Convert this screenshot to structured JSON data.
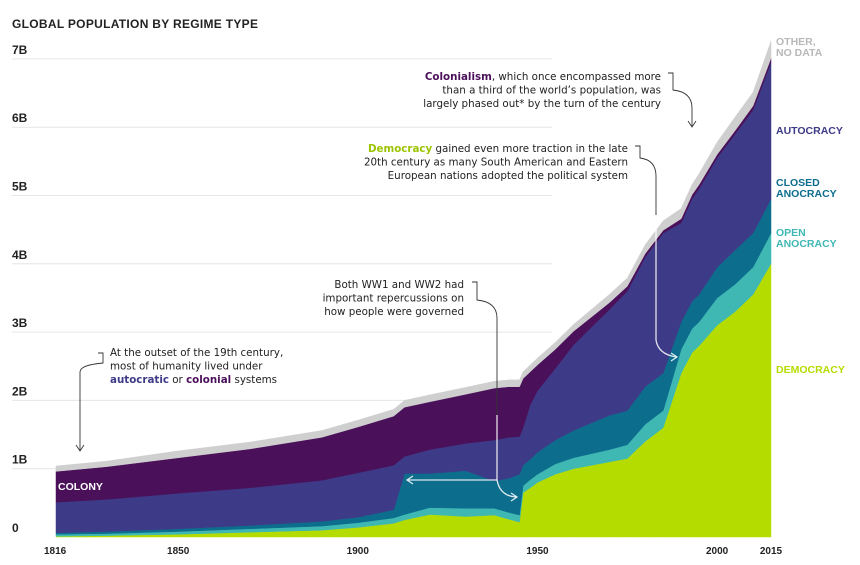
{
  "chart_data": {
    "type": "area",
    "stacked": true,
    "title": "GLOBAL POPULATION BY REGIME TYPE",
    "x_ticks": [
      "1816",
      "1850",
      "1900",
      "1950",
      "2000",
      "2015"
    ],
    "y_ticks": [
      "0",
      "1B",
      "2B",
      "3B",
      "4B",
      "5B",
      "6B",
      "7B"
    ],
    "ylim": [
      0,
      7.4
    ],
    "xlim": [
      1816,
      2015
    ],
    "x": [
      1816,
      1830,
      1850,
      1870,
      1890,
      1900,
      1910,
      1913,
      1920,
      1930,
      1938,
      1942,
      1945,
      1946,
      1948,
      1950,
      1955,
      1960,
      1970,
      1975,
      1980,
      1985,
      1990,
      1993,
      1995,
      2000,
      2005,
      2010,
      2015
    ],
    "series": [
      {
        "key": "democracy",
        "name": "DEMOCRACY",
        "color": "#b5dc00",
        "values": [
          0.01,
          0.02,
          0.04,
          0.07,
          0.1,
          0.14,
          0.2,
          0.25,
          0.33,
          0.3,
          0.32,
          0.26,
          0.22,
          0.65,
          0.72,
          0.8,
          0.92,
          1.0,
          1.1,
          1.15,
          1.4,
          1.6,
          2.4,
          2.7,
          2.8,
          3.1,
          3.3,
          3.55,
          4.0
        ]
      },
      {
        "key": "open_anocracy",
        "name": "OPEN\nANOCRACY",
        "color": "#3fb8b4",
        "values": [
          0.03,
          0.03,
          0.04,
          0.05,
          0.06,
          0.07,
          0.08,
          0.08,
          0.1,
          0.12,
          0.1,
          0.1,
          0.1,
          0.1,
          0.12,
          0.12,
          0.15,
          0.16,
          0.18,
          0.2,
          0.25,
          0.25,
          0.35,
          0.35,
          0.35,
          0.4,
          0.4,
          0.4,
          0.45
        ]
      },
      {
        "key": "closed_anocracy",
        "name": "CLOSED\nANOCRACY",
        "color": "#0c6d8d",
        "values": [
          0.02,
          0.03,
          0.04,
          0.05,
          0.07,
          0.08,
          0.12,
          0.6,
          0.5,
          0.55,
          0.4,
          0.5,
          0.6,
          0.3,
          0.3,
          0.32,
          0.35,
          0.4,
          0.5,
          0.5,
          0.55,
          0.55,
          0.4,
          0.4,
          0.4,
          0.45,
          0.5,
          0.5,
          0.5
        ]
      },
      {
        "key": "autocracy",
        "name": "AUTOCRACY",
        "color": "#3d3a87",
        "values": [
          0.45,
          0.47,
          0.52,
          0.55,
          0.6,
          0.65,
          0.65,
          0.25,
          0.35,
          0.4,
          0.6,
          0.6,
          0.55,
          0.55,
          0.8,
          0.9,
          1.05,
          1.25,
          1.55,
          1.75,
          1.9,
          2.05,
          1.45,
          1.5,
          1.55,
          1.6,
          1.7,
          1.8,
          2.0
        ]
      },
      {
        "key": "colony",
        "name": "COLONY",
        "color": "#4a105a",
        "values": [
          0.45,
          0.48,
          0.52,
          0.57,
          0.63,
          0.67,
          0.72,
          0.72,
          0.7,
          0.72,
          0.76,
          0.74,
          0.73,
          0.72,
          0.48,
          0.38,
          0.28,
          0.2,
          0.1,
          0.07,
          0.05,
          0.04,
          0.06,
          0.06,
          0.06,
          0.05,
          0.05,
          0.06,
          0.06
        ]
      },
      {
        "key": "other",
        "name": "OTHER,\nNO DATA",
        "color": "#cfcfcf",
        "values": [
          0.08,
          0.08,
          0.1,
          0.1,
          0.1,
          0.1,
          0.1,
          0.1,
          0.1,
          0.1,
          0.1,
          0.1,
          0.1,
          0.1,
          0.1,
          0.1,
          0.1,
          0.1,
          0.12,
          0.12,
          0.13,
          0.14,
          0.15,
          0.15,
          0.16,
          0.18,
          0.2,
          0.2,
          0.25
        ]
      }
    ],
    "label_colors": {
      "colony": "#ffffff",
      "autocracy": "#3d3a87",
      "closed_anocracy": "#0c6d8d",
      "open_anocracy": "#3fb8b4",
      "democracy": "#b5dc00",
      "other": "#b8b8b8"
    },
    "annotations": [
      {
        "key": "colonial",
        "lines": [
          [
            {
              "t": "Colonialism",
              "c": "#4a105a",
              "b": true
            },
            {
              "t": ", which once encompassed more"
            }
          ],
          [
            {
              "t": "than a third of the world’s population, was"
            }
          ],
          [
            {
              "t": "largely phased out* by the turn of the century"
            }
          ]
        ]
      },
      {
        "key": "democracy",
        "lines": [
          [
            {
              "t": "Democracy",
              "c": "#9cc400",
              "b": true
            },
            {
              "t": " gained even more traction in the late"
            }
          ],
          [
            {
              "t": "20th century as many South American and Eastern"
            }
          ],
          [
            {
              "t": "European nations adopted the political system"
            }
          ]
        ]
      },
      {
        "key": "wars",
        "lines": [
          [
            {
              "t": "Both WW1 and WW2 had"
            }
          ],
          [
            {
              "t": "important repercussions on"
            }
          ],
          [
            {
              "t": "how people were governed"
            }
          ]
        ]
      },
      {
        "key": "outset",
        "lines": [
          [
            {
              "t": "At the outset of the 19th century,"
            }
          ],
          [
            {
              "t": "most of humanity lived under"
            }
          ],
          [
            {
              "t": "autocratic",
              "c": "#3d3a87",
              "b": true
            },
            {
              "t": " or "
            },
            {
              "t": "colonial",
              "c": "#4a105a",
              "b": true
            },
            {
              "t": " systems"
            }
          ]
        ]
      }
    ]
  }
}
